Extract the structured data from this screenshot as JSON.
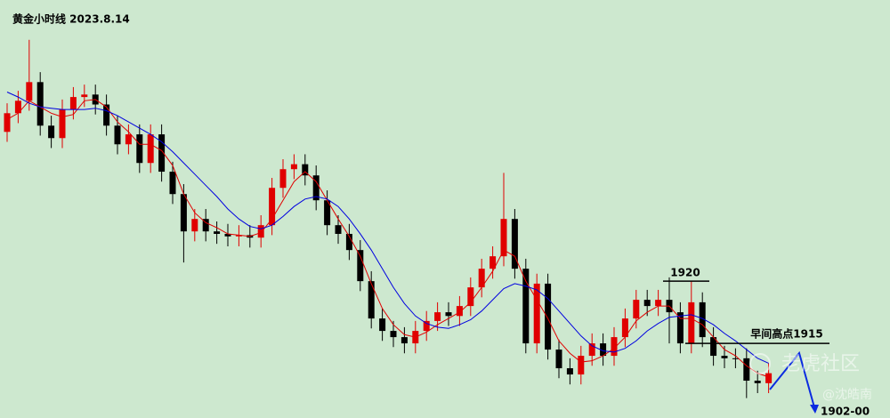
{
  "chart_data": {
    "type": "candlestick",
    "title": "黄金小时线  2023.8.14",
    "ylim": [
      1909,
      1942.6
    ],
    "up_color": "#e00000",
    "down_color": "#000000",
    "open": [
      1932.0,
      1933.5,
      1934.5,
      1936.0,
      1932.5,
      1931.5,
      1933.8,
      1934.8,
      1935.0,
      1934.2,
      1932.5,
      1931.0,
      1931.8,
      1929.5,
      1931.8,
      1928.8,
      1927.0,
      1924.0,
      1925.0,
      1924.0,
      1923.8,
      1923.6,
      1923.7,
      1923.5,
      1924.5,
      1927.5,
      1929.0,
      1929.4,
      1928.5,
      1926.5,
      1924.5,
      1923.8,
      1922.5,
      1920.0,
      1917.0,
      1916.0,
      1915.5,
      1915.0,
      1916.0,
      1916.8,
      1917.5,
      1917.2,
      1918.0,
      1919.5,
      1921.0,
      1922.0,
      1925.0,
      1921.0,
      1915.0,
      1919.8,
      1914.5,
      1913.0,
      1912.5,
      1914.0,
      1915.0,
      1914.0,
      1915.5,
      1917.0,
      1918.5,
      1918.0,
      1918.5,
      1917.5,
      1915.0,
      1918.3,
      1915.5,
      1914.0,
      1913.8,
      1913.8,
      1912.0,
      1911.8
    ],
    "high": [
      1934.3,
      1935.3,
      1939.4,
      1936.8,
      1933.3,
      1934.6,
      1935.6,
      1935.8,
      1935.8,
      1935.0,
      1933.3,
      1932.6,
      1932.6,
      1932.6,
      1932.6,
      1929.6,
      1927.8,
      1925.8,
      1925.8,
      1924.8,
      1924.6,
      1924.5,
      1924.5,
      1925.3,
      1928.3,
      1929.8,
      1930.2,
      1930.2,
      1929.3,
      1927.3,
      1925.3,
      1924.6,
      1923.3,
      1920.8,
      1917.8,
      1916.8,
      1916.3,
      1916.8,
      1917.6,
      1918.3,
      1918.3,
      1918.8,
      1920.3,
      1921.8,
      1922.8,
      1928.7,
      1925.8,
      1921.8,
      1920.6,
      1920.6,
      1915.3,
      1913.8,
      1914.8,
      1915.8,
      1915.8,
      1916.3,
      1917.8,
      1919.3,
      1919.3,
      1919.3,
      1920.3,
      1918.3,
      1920.0,
      1919.1,
      1916.3,
      1914.8,
      1914.6,
      1914.6,
      1912.8,
      1913.4
    ],
    "low": [
      1931.2,
      1932.7,
      1933.7,
      1931.7,
      1930.7,
      1930.7,
      1933.0,
      1934.0,
      1933.4,
      1931.7,
      1930.2,
      1930.2,
      1928.7,
      1928.7,
      1928.0,
      1926.2,
      1921.5,
      1923.2,
      1923.2,
      1923.0,
      1922.8,
      1922.8,
      1922.7,
      1922.7,
      1923.7,
      1926.7,
      1928.2,
      1927.7,
      1925.7,
      1923.7,
      1923.0,
      1921.7,
      1919.2,
      1916.2,
      1915.2,
      1914.7,
      1914.2,
      1914.2,
      1915.2,
      1916.0,
      1916.4,
      1916.4,
      1917.2,
      1918.7,
      1920.2,
      1921.2,
      1920.2,
      1914.2,
      1914.2,
      1913.7,
      1912.2,
      1911.7,
      1911.7,
      1913.2,
      1913.2,
      1913.2,
      1914.7,
      1916.2,
      1917.2,
      1917.2,
      1915.0,
      1914.2,
      1914.2,
      1914.7,
      1913.2,
      1913.0,
      1913.0,
      1910.6,
      1911.0,
      1911.0
    ],
    "close": [
      1933.5,
      1934.5,
      1936.0,
      1932.5,
      1931.5,
      1933.8,
      1934.8,
      1935.0,
      1934.2,
      1932.5,
      1931.0,
      1931.8,
      1929.5,
      1931.8,
      1928.8,
      1927.0,
      1924.0,
      1925.0,
      1924.0,
      1923.8,
      1923.6,
      1923.7,
      1923.5,
      1924.5,
      1927.5,
      1929.0,
      1929.4,
      1928.5,
      1926.5,
      1924.5,
      1923.8,
      1922.5,
      1920.0,
      1917.0,
      1916.0,
      1915.5,
      1915.0,
      1916.0,
      1916.8,
      1917.5,
      1917.2,
      1918.0,
      1919.5,
      1921.0,
      1922.0,
      1925.0,
      1921.0,
      1915.0,
      1919.8,
      1914.5,
      1913.0,
      1912.5,
      1914.0,
      1915.0,
      1914.0,
      1915.5,
      1917.0,
      1918.5,
      1918.0,
      1918.5,
      1917.5,
      1915.0,
      1918.3,
      1915.5,
      1914.0,
      1913.8,
      1913.8,
      1912.0,
      1911.8,
      1912.6
    ],
    "lines": [
      {
        "color": "#e00000",
        "values": [
          1933.0,
          1933.5,
          1934.5,
          1934.0,
          1933.5,
          1933.2,
          1933.4,
          1934.5,
          1934.6,
          1934.0,
          1932.8,
          1932.0,
          1931.0,
          1931.0,
          1930.5,
          1929.3,
          1927.0,
          1925.5,
          1924.7,
          1924.3,
          1923.8,
          1923.7,
          1923.6,
          1923.9,
          1925.0,
          1926.5,
          1928.0,
          1928.8,
          1928.0,
          1926.5,
          1925.0,
          1923.6,
          1922.0,
          1919.8,
          1917.8,
          1916.5,
          1915.7,
          1915.5,
          1915.9,
          1916.5,
          1917.0,
          1917.5,
          1918.3,
          1919.5,
          1920.8,
          1922.5,
          1922.0,
          1920.0,
          1918.5,
          1917.0,
          1915.2,
          1914.2,
          1913.5,
          1913.6,
          1914.0,
          1914.6,
          1915.5,
          1916.8,
          1917.5,
          1918.0,
          1918.0,
          1917.0,
          1917.0,
          1916.5,
          1915.5,
          1914.5,
          1914.0,
          1913.2,
          1912.6,
          1912.3
        ]
      },
      {
        "color": "#0000e0",
        "values": [
          1935.2,
          1934.8,
          1934.3,
          1934.0,
          1933.9,
          1933.8,
          1933.8,
          1933.8,
          1933.9,
          1933.7,
          1933.3,
          1932.8,
          1932.3,
          1931.8,
          1931.2,
          1930.4,
          1929.5,
          1928.6,
          1927.7,
          1926.8,
          1925.8,
          1925.0,
          1924.4,
          1924.2,
          1924.5,
          1925.2,
          1926.0,
          1926.6,
          1926.8,
          1926.6,
          1926.0,
          1925.0,
          1923.8,
          1922.5,
          1921.0,
          1919.5,
          1918.2,
          1917.2,
          1916.6,
          1916.3,
          1916.2,
          1916.5,
          1916.9,
          1917.6,
          1918.5,
          1919.4,
          1919.8,
          1919.6,
          1919.3,
          1918.6,
          1917.6,
          1916.6,
          1915.6,
          1914.8,
          1914.4,
          1914.3,
          1914.6,
          1915.2,
          1916.0,
          1916.6,
          1917.1,
          1917.2,
          1917.3,
          1917.0,
          1916.5,
          1915.8,
          1915.2,
          1914.5,
          1913.8,
          1913.4
        ]
      }
    ],
    "annotations": [
      {
        "label": "1920",
        "value": 1920
      },
      {
        "label": "早间高点1915",
        "value": 1915
      },
      {
        "label": "1902-00"
      }
    ],
    "watermark": [
      "老虎社区",
      "@沈皓南"
    ]
  }
}
